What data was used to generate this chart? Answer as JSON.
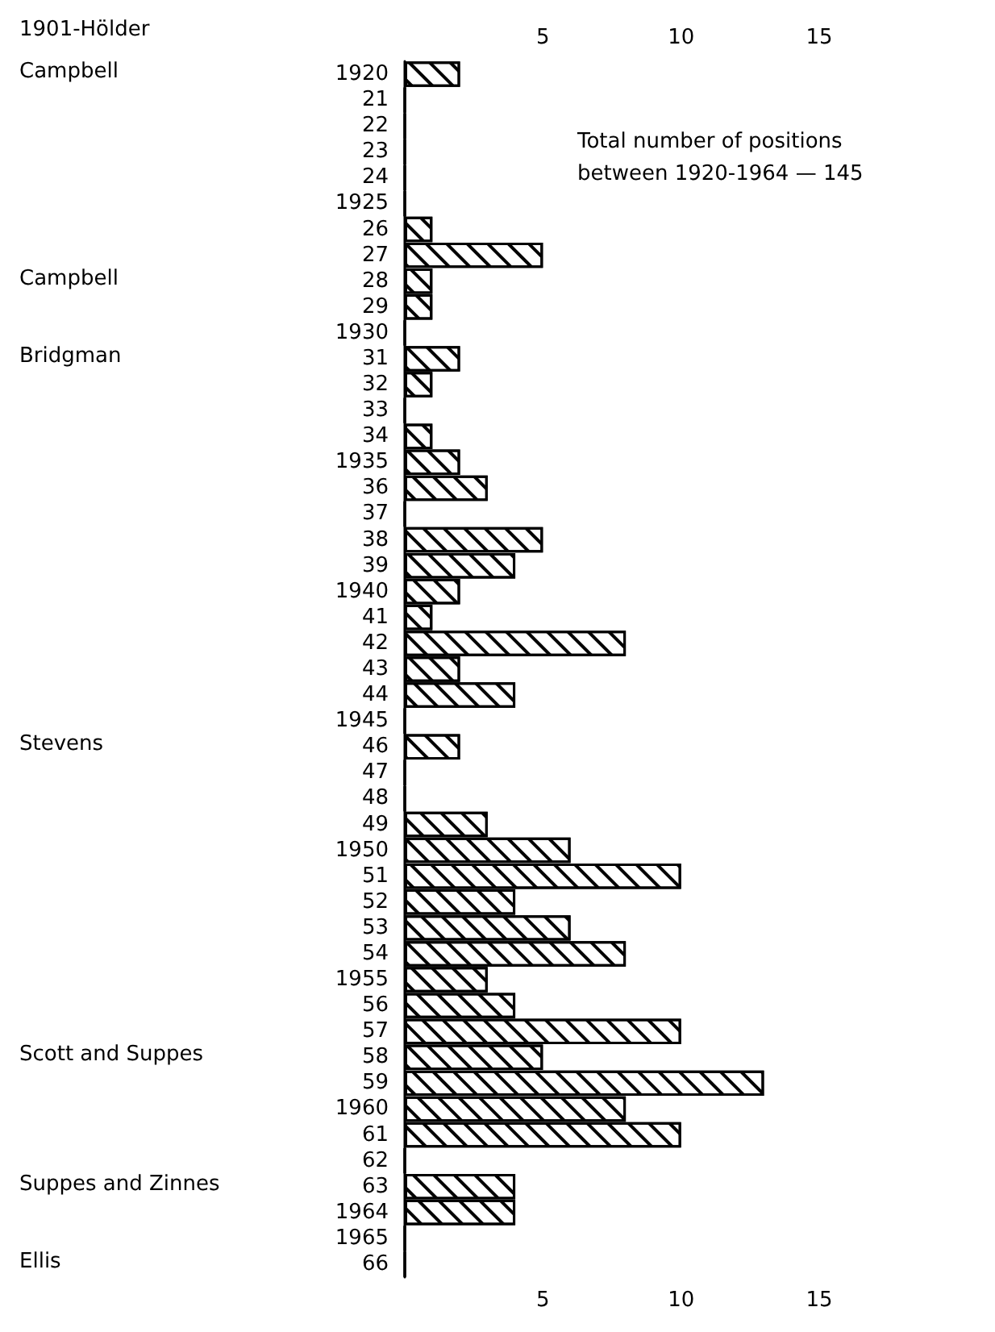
{
  "chart_data": {
    "type": "bar",
    "orientation": "horizontal",
    "categories": [
      "1920",
      "21",
      "22",
      "23",
      "24",
      "1925",
      "26",
      "27",
      "28",
      "29",
      "1930",
      "31",
      "32",
      "33",
      "34",
      "1935",
      "36",
      "37",
      "38",
      "39",
      "1940",
      "41",
      "42",
      "43",
      "44",
      "1945",
      "46",
      "47",
      "48",
      "49",
      "1950",
      "51",
      "52",
      "53",
      "54",
      "1955",
      "56",
      "57",
      "58",
      "59",
      "1960",
      "61",
      "62",
      "63",
      "1964",
      "1965",
      "66"
    ],
    "values": [
      2,
      0,
      0,
      0,
      0,
      0,
      1,
      5,
      1,
      1,
      0,
      2,
      1,
      0,
      1,
      2,
      3,
      0,
      5,
      4,
      2,
      1,
      8,
      2,
      4,
      0,
      2,
      0,
      0,
      3,
      6,
      10,
      4,
      6,
      8,
      3,
      4,
      10,
      5,
      13,
      8,
      10,
      0,
      4,
      4,
      0,
      0
    ],
    "color": "#000000",
    "xlim": [
      0,
      15
    ],
    "xticks": [
      5,
      10,
      15
    ],
    "x2lim": [
      0,
      15
    ],
    "x2ticks": [
      5,
      10,
      15
    ],
    "grid": false,
    "annotations": [
      "1901-Hölder",
      "Campbell",
      "Campbell",
      "Bridgman",
      "Stevens",
      "Scott and Suppes",
      "Suppes and Zinnes",
      "Ellis",
      "Total number of positions\nbetween 1920-1964 — 145"
    ]
  }
}
